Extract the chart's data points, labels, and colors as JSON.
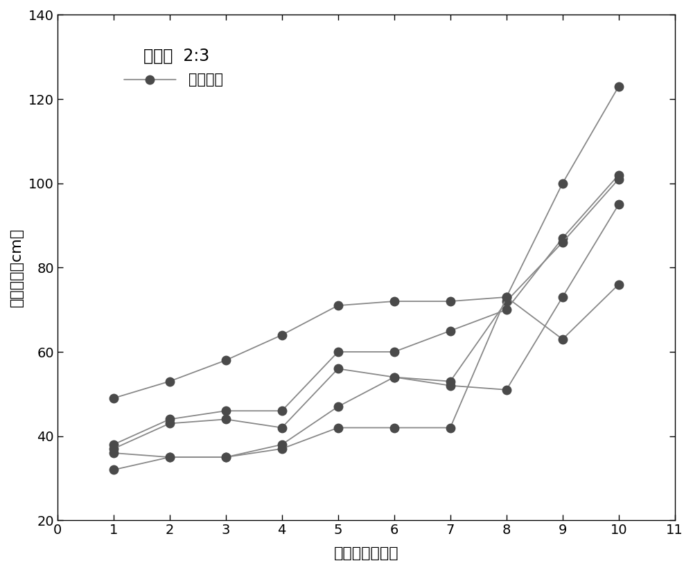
{
  "title_line1": "坡度：  2:3",
  "legend_label": "两球一线",
  "xlabel": "样品数量（个）",
  "ylabel": "滚动距离（cm）",
  "xlim": [
    0,
    11
  ],
  "ylim": [
    20,
    140
  ],
  "xticks": [
    0,
    1,
    2,
    3,
    4,
    5,
    6,
    7,
    8,
    9,
    10,
    11
  ],
  "yticks": [
    20,
    40,
    60,
    80,
    100,
    120,
    140
  ],
  "series": [
    [
      49,
      53,
      58,
      64,
      71,
      72,
      72,
      73,
      100,
      123
    ],
    [
      38,
      44,
      46,
      46,
      60,
      60,
      65,
      70,
      87,
      102
    ],
    [
      37,
      43,
      44,
      42,
      56,
      54,
      53,
      72,
      86,
      101
    ],
    [
      36,
      35,
      35,
      38,
      47,
      54,
      52,
      51,
      73,
      95
    ],
    [
      32,
      35,
      35,
      37,
      42,
      42,
      42,
      73,
      63,
      76
    ]
  ],
  "x_values": [
    1,
    2,
    3,
    4,
    5,
    6,
    7,
    8,
    9,
    10
  ],
  "line_color": "#888888",
  "marker_color": "#4a4a4a",
  "marker_size": 9,
  "line_width": 1.3,
  "background_color": "#ffffff",
  "font_size_label": 16,
  "font_size_tick": 14,
  "font_size_legend": 15,
  "font_size_title": 17
}
